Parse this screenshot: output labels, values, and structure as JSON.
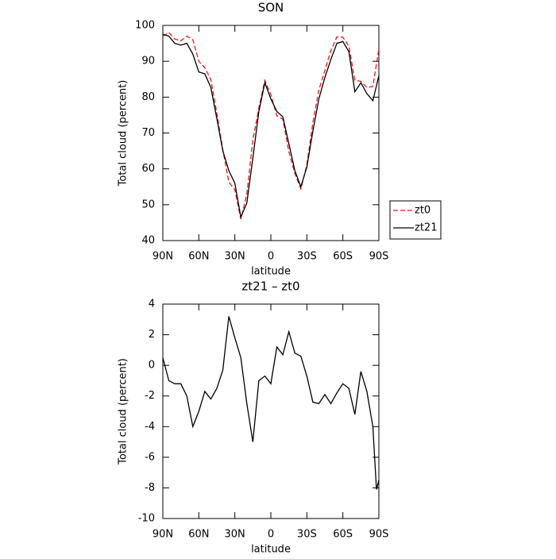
{
  "chart_data": [
    {
      "type": "line",
      "title": "SON",
      "xlabel": "latitude",
      "ylabel": "Total cloud (percent)",
      "x": [
        90,
        85,
        80,
        75,
        70,
        65,
        60,
        55,
        50,
        45,
        40,
        35,
        30,
        25,
        20,
        15,
        10,
        5,
        0,
        -5,
        -10,
        -15,
        -20,
        -25,
        -30,
        -35,
        -40,
        -45,
        -50,
        -55,
        -60,
        -65,
        -70,
        -75,
        -80,
        -85,
        -90
      ],
      "series": [
        {
          "name": "zt0",
          "color": "#e41a1c",
          "dash": true,
          "values": [
            97,
            98,
            96.2,
            95.7,
            97,
            96,
            90,
            88.2,
            84.9,
            75.5,
            65.3,
            56.3,
            54.2,
            46,
            53,
            68,
            77,
            84.7,
            80.7,
            74.8,
            73.8,
            64.8,
            58.7,
            54.4,
            61.2,
            72.9,
            82,
            87.4,
            93,
            96.8,
            96.7,
            94.2,
            84.7,
            84.4,
            82.7,
            83,
            93.5
          ]
        },
        {
          "name": "zt21",
          "color": "#000000",
          "dash": false,
          "values": [
            97.5,
            97,
            95,
            94.5,
            95,
            92,
            87,
            86.5,
            82.7,
            74,
            65,
            59.5,
            56,
            46.5,
            50.5,
            63,
            76,
            84,
            79.5,
            76,
            74.5,
            67,
            59.5,
            55,
            60.5,
            70.5,
            79.5,
            85.5,
            90.5,
            95,
            95.5,
            92.7,
            81.5,
            84,
            81,
            79,
            86
          ]
        }
      ],
      "xlim": [
        90,
        -90
      ],
      "xticks": [
        {
          "value": 90,
          "label": "90N"
        },
        {
          "value": 60,
          "label": "60N"
        },
        {
          "value": 30,
          "label": "30N"
        },
        0,
        {
          "value": -30,
          "label": "30S"
        },
        {
          "value": -60,
          "label": "60S"
        },
        {
          "value": -90,
          "label": "90S"
        }
      ],
      "ylim": [
        40,
        100
      ],
      "yticks": [
        40,
        50,
        60,
        70,
        80,
        90,
        100
      ],
      "legend": "right"
    },
    {
      "type": "line",
      "title": "zt21 – zt0",
      "xlabel": "latitude",
      "ylabel": "Total cloud (percent)",
      "x": [
        90,
        85,
        80,
        75,
        70,
        65,
        60,
        55,
        50,
        45,
        40,
        35,
        30,
        25,
        20,
        15,
        10,
        5,
        0,
        -5,
        -10,
        -15,
        -20,
        -25,
        -30,
        -35,
        -40,
        -45,
        -50,
        -55,
        -60,
        -65,
        -70,
        -75,
        -80,
        -85,
        -88,
        -90
      ],
      "series": [
        {
          "color": "#000000",
          "dash": false,
          "values": [
            0.5,
            -1,
            -1.2,
            -1.2,
            -2,
            -4,
            -3,
            -1.7,
            -2.2,
            -1.5,
            -0.3,
            3.2,
            1.8,
            0.5,
            -2.5,
            -5,
            -1,
            -0.7,
            -1.2,
            1.2,
            0.7,
            2.2,
            0.8,
            0.6,
            -0.7,
            -2.4,
            -2.5,
            -1.9,
            -2.5,
            -1.8,
            -1.2,
            -1.5,
            -3.2,
            -0.4,
            -1.7,
            -4,
            -8.1,
            -7.5
          ]
        }
      ],
      "xlim": [
        90,
        -90
      ],
      "xticks": [
        {
          "value": 90,
          "label": "90N"
        },
        {
          "value": 60,
          "label": "60N"
        },
        {
          "value": 30,
          "label": "30N"
        },
        0,
        {
          "value": -30,
          "label": "30S"
        },
        {
          "value": -60,
          "label": "60S"
        },
        {
          "value": -90,
          "label": "90S"
        }
      ],
      "ylim": [
        -10,
        4
      ],
      "yticks": [
        -10,
        -8,
        -6,
        -4,
        -2,
        0,
        2,
        4
      ]
    }
  ]
}
